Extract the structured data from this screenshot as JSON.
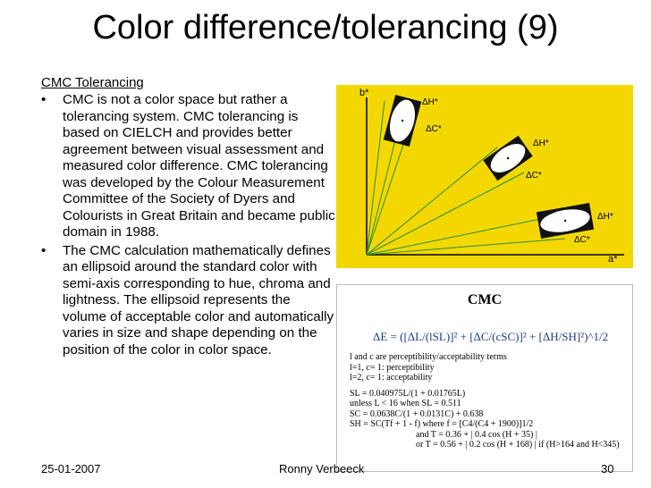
{
  "title": "Color difference/tolerancing (9)",
  "subhead": "CMC Tolerancing",
  "bullets": [
    "CMC is not a color space but rather a tolerancing system. CMC tolerancing is based on CIELCH and provides better agreement between visual assessment and measured color difference. CMC tolerancing was developed by the Colour Measurement Committee of the Society of Dyers and Colourists in Great Britain and became public domain in 1988.",
    "The CMC calculation mathematically defines an ellipsoid around the standard color with semi-axis corresponding to hue, chroma and lightness. The ellipsoid represents the volume of acceptable color and automatically varies in size and shape depending on the position of the color in color space."
  ],
  "figure": {
    "axis_y": "b*",
    "axis_x": "a*",
    "label_dH": "ΔH*",
    "label_dC": "ΔC*",
    "background_color": "#f3d800"
  },
  "cmc": {
    "title": "CMC",
    "equation": "ΔE = ([ΔL/(lSL)]² + [ΔC/(cSC)]² + [ΔH/SH]²)^1/2",
    "lines": [
      "l and c are perceptibility/acceptability terms",
      "l=1, c= 1: perceptibility",
      "l=2, c= 1: acceptability",
      "SL = 0.040975L/(1 + 0.01765L)",
      "unless L < 16 when SL = 0.511",
      "SC = 0.0638C/(1 + 0.0131C) + 0.638",
      "SH = SC(Tf + 1 - f) where f = [C4/(C4 + 1900)]1/2",
      "and T = 0.36 + | 0.4 cos (H + 35) |",
      "or T = 0.56 + | 0.2 cos (H + 168) | if (H>164 and H<345)"
    ]
  },
  "footer": {
    "date": "25-01-2007",
    "author": "Ronny Verbeeck",
    "page": "30"
  }
}
